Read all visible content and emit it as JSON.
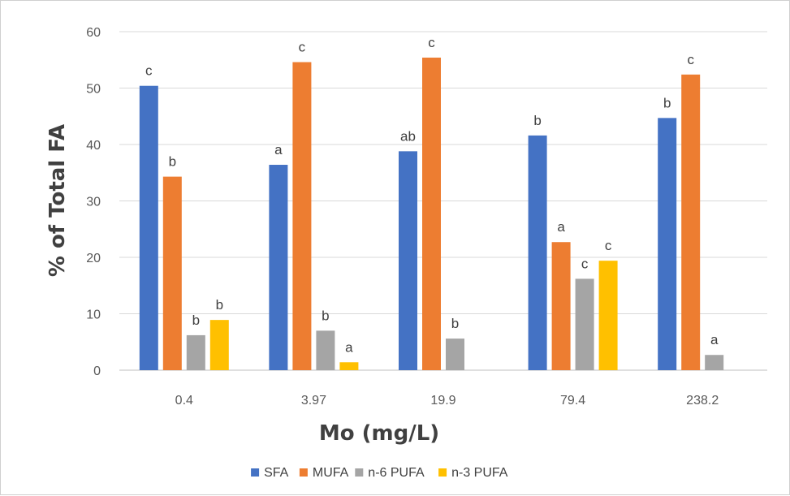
{
  "chart_data": {
    "type": "bar",
    "categories": [
      "0.4",
      "3.97",
      "19.9",
      "79.4",
      "238.2"
    ],
    "series": [
      {
        "name": "SFA",
        "color": "#4472C4",
        "values": [
          50.4,
          36.4,
          38.8,
          41.6,
          44.7
        ],
        "labels": [
          "c",
          "a",
          "ab",
          "b",
          "b"
        ]
      },
      {
        "name": "MUFA",
        "color": "#ED7D31",
        "values": [
          34.3,
          54.6,
          55.4,
          22.7,
          52.4
        ],
        "labels": [
          "b",
          "c",
          "c",
          "a",
          "c"
        ]
      },
      {
        "name": "n-6 PUFA",
        "color": "#A5A5A5",
        "values": [
          6.2,
          7.0,
          5.6,
          16.2,
          2.7
        ],
        "labels": [
          "b",
          "b",
          "b",
          "c",
          "a"
        ]
      },
      {
        "name": "n-3 PUFA",
        "color": "#FFC000",
        "values": [
          8.9,
          1.4,
          0,
          19.4,
          0
        ],
        "labels": [
          "b",
          "a",
          "",
          "c",
          ""
        ]
      }
    ],
    "xlabel": "Mo (mg/L)",
    "ylabel": "% of Total FA",
    "ylim": [
      0,
      60
    ],
    "yticks": [
      0,
      10,
      20,
      30,
      40,
      50,
      60
    ],
    "grid": true,
    "legend": "bottom"
  }
}
